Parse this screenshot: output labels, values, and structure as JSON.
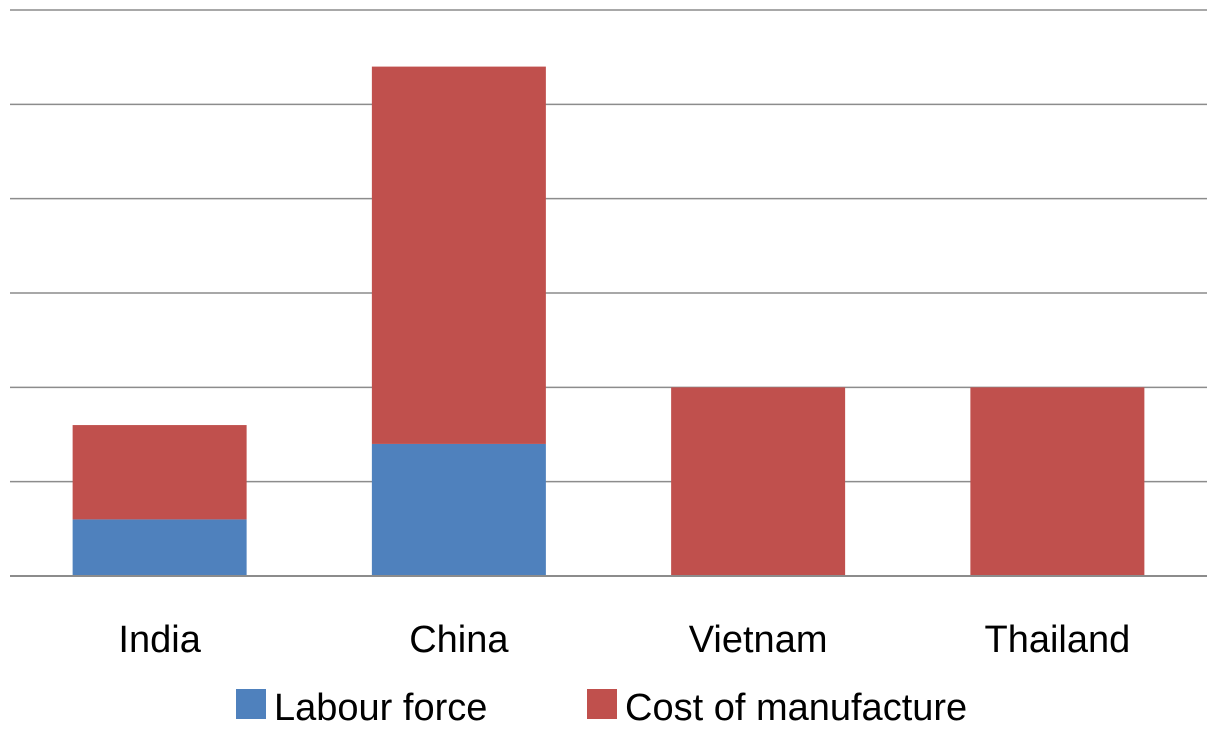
{
  "chart_data": {
    "type": "bar",
    "stacked": true,
    "title": "",
    "xlabel": "",
    "ylabel": "",
    "categories": [
      "India",
      "China",
      "Vietnam",
      "Thailand"
    ],
    "series": [
      {
        "name": "Labour force",
        "color": "#4f81bd",
        "values": [
          0.6,
          1.4,
          0,
          0
        ]
      },
      {
        "name": "Cost of manufacture",
        "color": "#c0504d",
        "values": [
          1.0,
          4.0,
          2.0,
          2.0
        ]
      }
    ],
    "ylim": [
      0,
      6
    ],
    "y_tick_step": 1,
    "y_tick_labels_visible": false,
    "grid": true,
    "legend_position": "bottom"
  }
}
